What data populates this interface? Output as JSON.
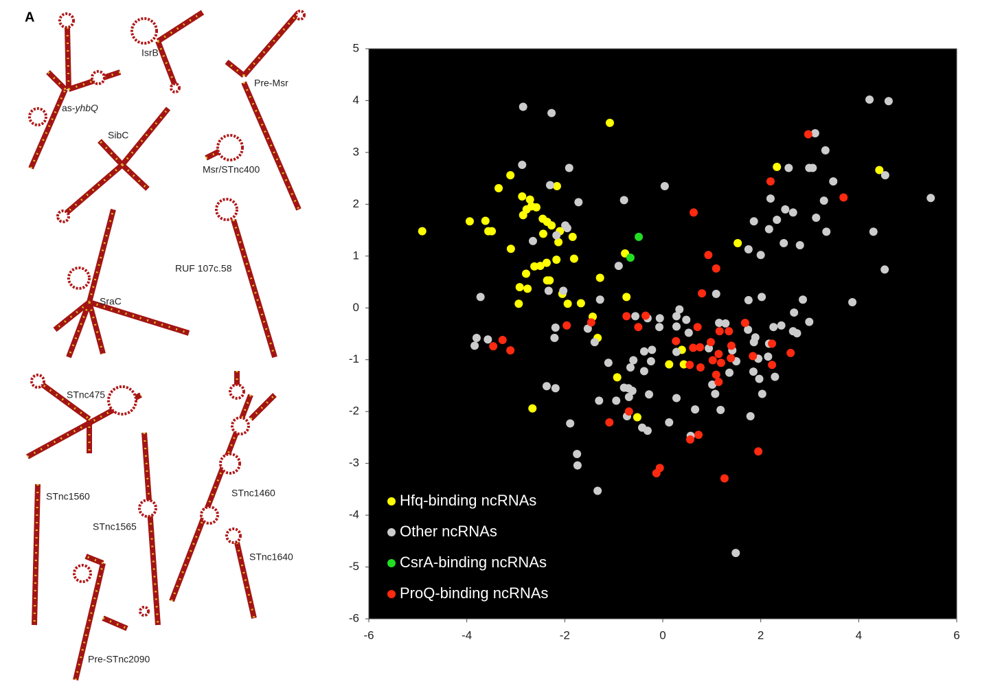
{
  "panel_label": "A",
  "structures": [
    {
      "label": "IsrB"
    },
    {
      "label": "Pre-Msr"
    },
    {
      "label": [
        "as-",
        "yhbQ"
      ]
    },
    {
      "label": "SibC"
    },
    {
      "label": "Msr/STnc400"
    },
    {
      "label": "RUF 107c.58"
    },
    {
      "label": "SraC"
    },
    {
      "label": "STnc475"
    },
    {
      "label": "STnc1560"
    },
    {
      "label": "STnc1565"
    },
    {
      "label": "STnc1460"
    },
    {
      "label": "STnc1640"
    },
    {
      "label": "Pre-STnc2090"
    }
  ],
  "chart_data": {
    "type": "scatter",
    "xlim": [
      -6,
      6
    ],
    "ylim": [
      -6,
      5
    ],
    "xticks": [
      -6,
      -4,
      -2,
      0,
      2,
      4,
      6
    ],
    "yticks": [
      -6,
      -5,
      -4,
      -3,
      -2,
      -1,
      0,
      1,
      2,
      3,
      4,
      5
    ],
    "background": "#000000",
    "legend": "lower left",
    "series": [
      {
        "name": "Hfq-binding ncRNAs",
        "color": "#ffff00",
        "x": [
          -4.91,
          -3.94,
          -3.62,
          -3.56,
          -3.49,
          -3.35,
          -3.11,
          -3.1,
          -2.87,
          -2.78,
          -2.71,
          -2.68,
          -2.58,
          -2.85,
          -2.45,
          -2.36,
          -2.27,
          -2.44,
          -2.1,
          -2.16,
          -2.13,
          -1.84,
          -1.81,
          -2.17,
          -2.62,
          -2.5,
          -2.37,
          -2.79,
          -2.92,
          -2.76,
          -2.94,
          -2.36,
          -2.31,
          -2.05,
          -1.94,
          -1.67,
          -1.28,
          -1.08,
          -0.77,
          -0.74,
          -1.43,
          -1.33,
          0.39,
          0.13,
          0.43,
          -0.93,
          -0.52,
          -2.66,
          2.33,
          4.42,
          1.53
        ],
        "values": [
          1.48,
          1.67,
          1.68,
          1.48,
          1.48,
          2.31,
          2.56,
          1.14,
          2.15,
          1.9,
          2.09,
          1.96,
          1.94,
          1.79,
          1.72,
          1.66,
          1.59,
          1.43,
          1.48,
          2.35,
          1.27,
          1.37,
          0.95,
          0.93,
          0.8,
          0.81,
          0.87,
          0.66,
          0.4,
          0.37,
          0.08,
          0.53,
          0.53,
          0.27,
          0.08,
          0.09,
          0.58,
          3.57,
          1.05,
          0.21,
          -0.17,
          -0.58,
          -0.81,
          -1.09,
          -1.09,
          -1.34,
          -2.11,
          -1.94,
          2.72,
          2.66,
          1.25
        ]
      },
      {
        "name": "Other ncRNAs",
        "color": "#cccccc",
        "x": [
          -2.85,
          -2.27,
          4.22,
          4.61,
          3.11,
          3.32,
          -2.87,
          -1.91,
          0.04,
          2.57,
          2.99,
          3.06,
          4.54,
          3.48,
          -2.3,
          -1.72,
          -0.79,
          2.2,
          2.5,
          2.66,
          3.29,
          5.47,
          3.13,
          1.86,
          2.33,
          2.17,
          3.34,
          4.3,
          -1.99,
          -1.95,
          -2.17,
          -2.65,
          2.47,
          2.8,
          1.75,
          2,
          -0.9,
          4.53,
          -3.72,
          -2.33,
          -2.03,
          -1.28,
          1.09,
          1.75,
          2.02,
          2.86,
          3.87,
          -3.8,
          -3.84,
          -3.57,
          -2.19,
          -2.21,
          -1.53,
          -1.39,
          -0.56,
          -0.31,
          -0.06,
          0.34,
          0.28,
          0.48,
          0.28,
          0.53,
          1.15,
          1.28,
          1.74,
          2.26,
          2.68,
          2.66,
          2.74,
          2.99,
          2.42,
          1.89,
          1.86,
          2.17,
          -0.07,
          -0.38,
          -0.22,
          -0.6,
          -0.24,
          -1.11,
          -0.66,
          -0.38,
          0.28,
          0.94,
          1.42,
          2.15,
          1.95,
          1.85,
          1.97,
          2.29,
          1.5,
          1.36,
          1.01,
          1.07,
          2.03,
          1.18,
          1.79,
          0.66,
          0.28,
          -0.28,
          -0.79,
          -0.7,
          -0.62,
          -0.69,
          -0.95,
          -1.3,
          -2.19,
          -2.37,
          -1.89,
          -1.75,
          -1.74,
          -1.33,
          -0.42,
          -0.31,
          0.13,
          0.57,
          1.49,
          -0.73
        ],
        "values": [
          3.88,
          3.76,
          4.02,
          3.99,
          3.37,
          3.04,
          2.76,
          2.7,
          2.35,
          2.7,
          2.7,
          2.7,
          2.56,
          2.44,
          2.37,
          2.04,
          2.08,
          2.11,
          1.9,
          1.84,
          2.07,
          2.12,
          1.74,
          1.67,
          1.7,
          1.52,
          1.47,
          1.47,
          1.59,
          1.54,
          1.4,
          1.29,
          1.25,
          1.21,
          1.13,
          1.02,
          0.81,
          0.74,
          0.21,
          0.33,
          0.33,
          0.16,
          0.27,
          0.15,
          0.21,
          0.16,
          0.11,
          -0.58,
          -0.73,
          -0.61,
          -0.38,
          -0.58,
          -0.4,
          -0.66,
          -0.16,
          -0.2,
          -0.2,
          -0.03,
          -0.16,
          -0.23,
          -0.36,
          -0.48,
          -0.29,
          -0.3,
          -0.42,
          -0.37,
          -0.09,
          -0.45,
          -0.49,
          -0.27,
          -0.34,
          -0.57,
          -0.66,
          -0.69,
          -0.37,
          -0.84,
          -0.81,
          -1.01,
          -1.03,
          -1.06,
          -1.15,
          -1.22,
          -0.85,
          -0.78,
          -0.82,
          -0.94,
          -0.98,
          -1.23,
          -1.37,
          -1.33,
          -1.03,
          -1.25,
          -1.48,
          -1.66,
          -1.66,
          -1.97,
          -2.09,
          -1.96,
          -1.74,
          -1.67,
          -1.54,
          -1.55,
          -1.6,
          -1.72,
          -1.79,
          -1.79,
          -1.55,
          -1.51,
          -2.23,
          -2.82,
          -3.04,
          -3.53,
          -2.31,
          -2.37,
          -2.21,
          -2.47,
          -4.73,
          -2.09
        ]
      },
      {
        "name": "CsrA-binding ncRNAs",
        "color": "#22dd22",
        "x": [
          -0.49,
          -0.66
        ],
        "values": [
          1.37,
          0.97
        ]
      },
      {
        "name": "ProQ-binding ncRNAs",
        "color": "#ff2a10",
        "x": [
          2.97,
          2.2,
          3.69,
          0.63,
          0.93,
          1.09,
          0.8,
          -0.74,
          -0.35,
          -0.5,
          -1.46,
          -1.96,
          1.68,
          0.27,
          0.71,
          0.98,
          1.16,
          1.35,
          1.4,
          0.62,
          0.76,
          0.55,
          0.77,
          1.02,
          1.14,
          1.19,
          1.39,
          1.09,
          1.14,
          1.84,
          2.23,
          2.23,
          2.61,
          -3.27,
          -3.46,
          -3.11,
          -1.09,
          -0.69,
          0.56,
          0.73,
          -0.06,
          -0.13,
          1.26,
          1.95
        ],
        "values": [
          3.35,
          2.44,
          2.13,
          1.84,
          1.02,
          0.76,
          0.28,
          -0.16,
          -0.15,
          -0.37,
          -0.28,
          -0.34,
          -0.29,
          -0.64,
          -0.37,
          -0.66,
          -0.45,
          -0.45,
          -0.73,
          -0.77,
          -0.76,
          -1.1,
          -1.15,
          -1.01,
          -0.89,
          -1.06,
          -0.97,
          -1.29,
          -1.43,
          -0.93,
          -0.69,
          -1.1,
          -0.87,
          -0.62,
          -0.74,
          -0.82,
          -2.21,
          -2,
          -2.54,
          -2.45,
          -3.09,
          -3.19,
          -3.29,
          -2.77
        ]
      }
    ]
  }
}
